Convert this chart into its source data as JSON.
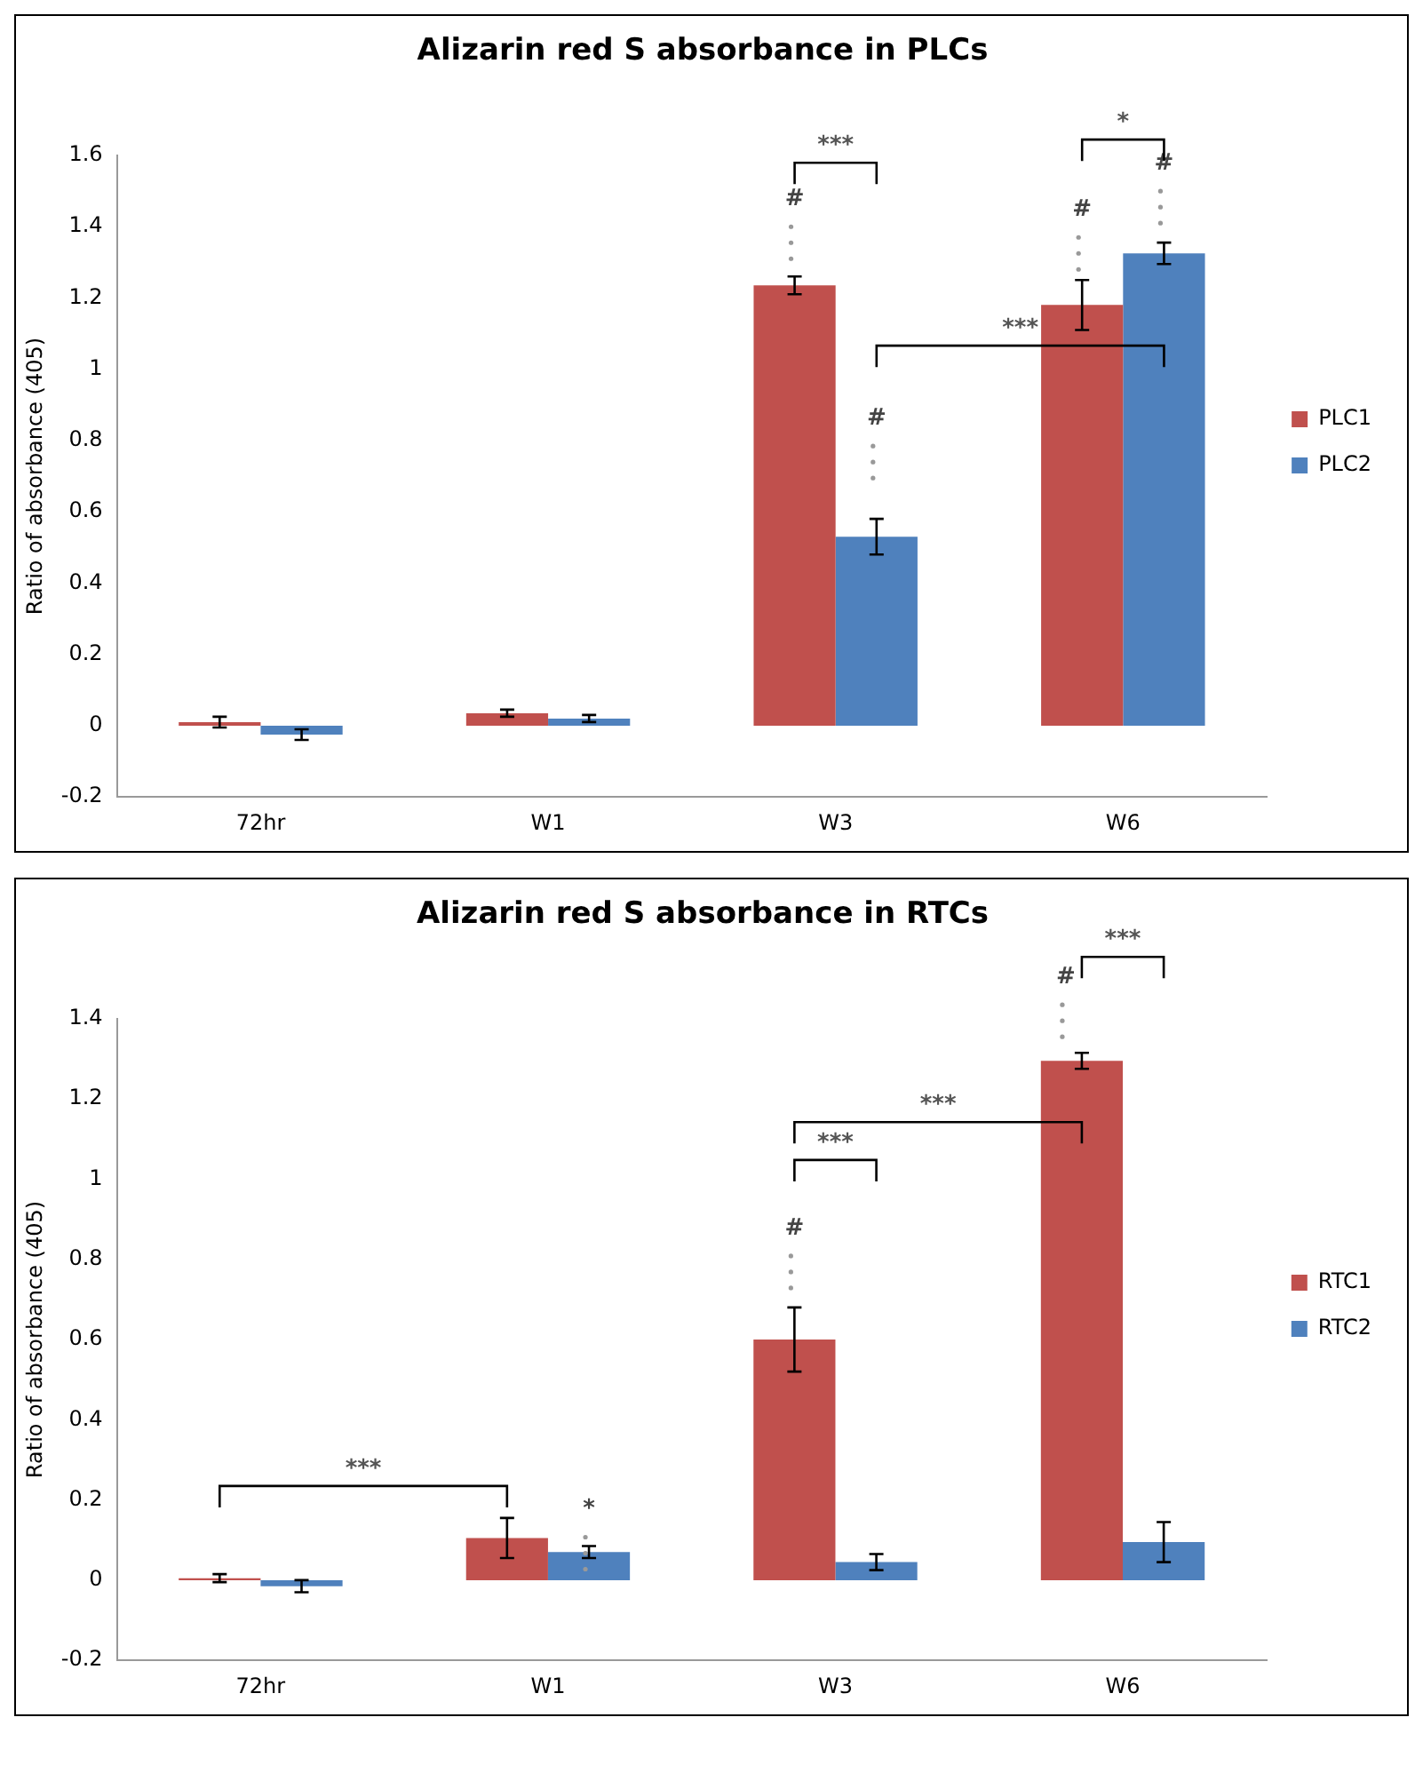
{
  "chart_data": [
    {
      "type": "bar",
      "title": "Alizarin red S absorbance in PLCs",
      "ylabel": "Ratio of absorbance (405)",
      "categories": [
        "72hr",
        "W1",
        "W3",
        "W6"
      ],
      "series": [
        {
          "name": "PLC1",
          "color": "#c0504d",
          "values": [
            0.01,
            0.035,
            1.235,
            1.18
          ],
          "errors": [
            0.015,
            0.01,
            0.025,
            0.07
          ]
        },
        {
          "name": "PLC2",
          "color": "#4f81bd",
          "values": [
            -0.025,
            0.02,
            0.53,
            1.325
          ],
          "errors": [
            0.015,
            0.01,
            0.05,
            0.03
          ]
        }
      ],
      "ylim": [
        -0.2,
        1.6
      ],
      "yticks": [
        -0.2,
        0,
        0.2,
        0.4,
        0.6,
        0.8,
        1,
        1.2,
        1.4,
        1.6
      ],
      "grid": false,
      "legend": "right",
      "annotations": [
        "***",
        "#",
        "#",
        "***",
        "#",
        "#",
        "*"
      ]
    },
    {
      "type": "bar",
      "title": "Alizarin red S absorbance in RTCs",
      "ylabel": "Ratio of absorbance (405)",
      "categories": [
        "72hr",
        "W1",
        "W3",
        "W6"
      ],
      "series": [
        {
          "name": "RTC1",
          "color": "#c0504d",
          "values": [
            0.005,
            0.105,
            0.6,
            1.295
          ],
          "errors": [
            0.01,
            0.05,
            0.08,
            0.02
          ]
        },
        {
          "name": "RTC2",
          "color": "#4f81bd",
          "values": [
            -0.015,
            0.07,
            0.045,
            0.095
          ],
          "errors": [
            0.015,
            0.015,
            0.02,
            0.05
          ]
        }
      ],
      "ylim": [
        -0.2,
        1.4
      ],
      "yticks": [
        -0.2,
        0,
        0.2,
        0.4,
        0.6,
        0.8,
        1,
        1.2,
        1.4
      ],
      "grid": false,
      "legend": "right",
      "annotations": [
        "***",
        "*",
        "#",
        "***",
        "***",
        "#",
        "***"
      ]
    }
  ]
}
